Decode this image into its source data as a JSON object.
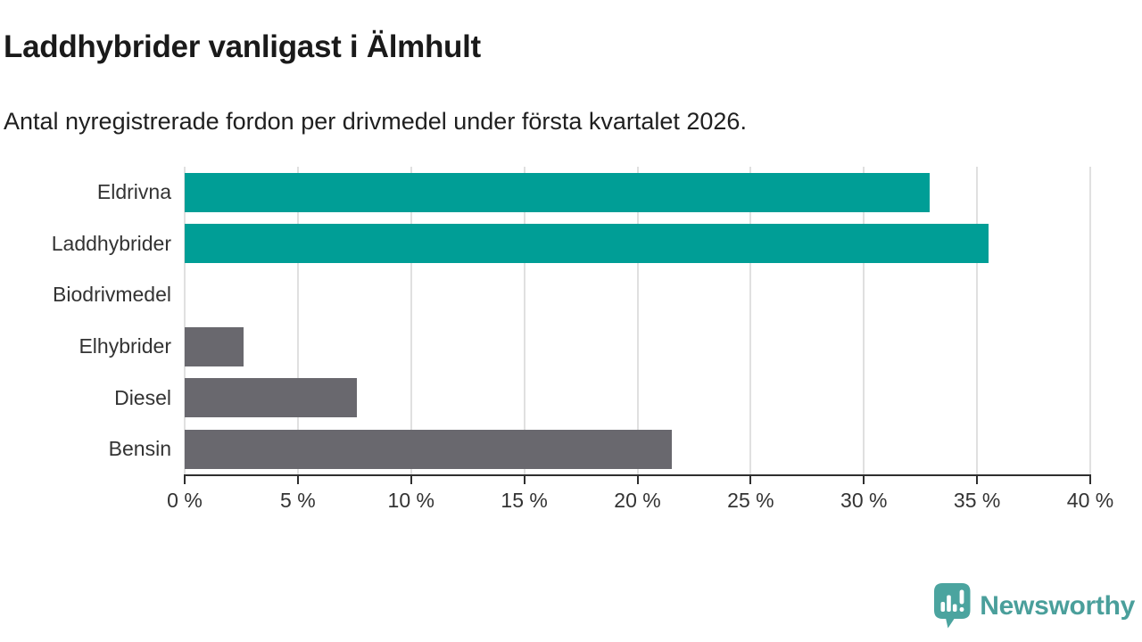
{
  "chart_data": {
    "type": "bar",
    "orientation": "horizontal",
    "title": "Laddhybrider vanligast i Älmhult",
    "subtitle": "Antal nyregistrerade fordon per drivmedel under första kvartalet 2026.",
    "categories": [
      "Eldrivna",
      "Laddhybrider",
      "Biodrivmedel",
      "Elhybrider",
      "Diesel",
      "Bensin"
    ],
    "values": [
      32.9,
      35.5,
      0,
      2.6,
      7.6,
      21.5
    ],
    "unit": "%",
    "xlabel": "",
    "ylabel": "",
    "xlim": [
      0,
      40
    ],
    "x_ticks": [
      0,
      5,
      10,
      15,
      20,
      25,
      30,
      35,
      40
    ],
    "x_tick_labels": [
      "0 %",
      "5 %",
      "10 %",
      "15 %",
      "20 %",
      "25 %",
      "30 %",
      "35 %",
      "40 %"
    ],
    "grid": true,
    "legend": false,
    "bar_colors": [
      "#009e96",
      "#009e96",
      "#69686e",
      "#69686e",
      "#69686e",
      "#69686e"
    ]
  },
  "branding": {
    "logo_text": "Newsworthy",
    "logo_icon": "newsworthy-speech-bubble-bar-chart-icon",
    "logo_color": "#4a9f9b"
  },
  "colors": {
    "accent_teal": "#009e96",
    "bar_gray": "#69686e",
    "gridline": "#e0e0e0",
    "axis": "#2f2f2f",
    "text_dark": "#1a1a1a"
  }
}
